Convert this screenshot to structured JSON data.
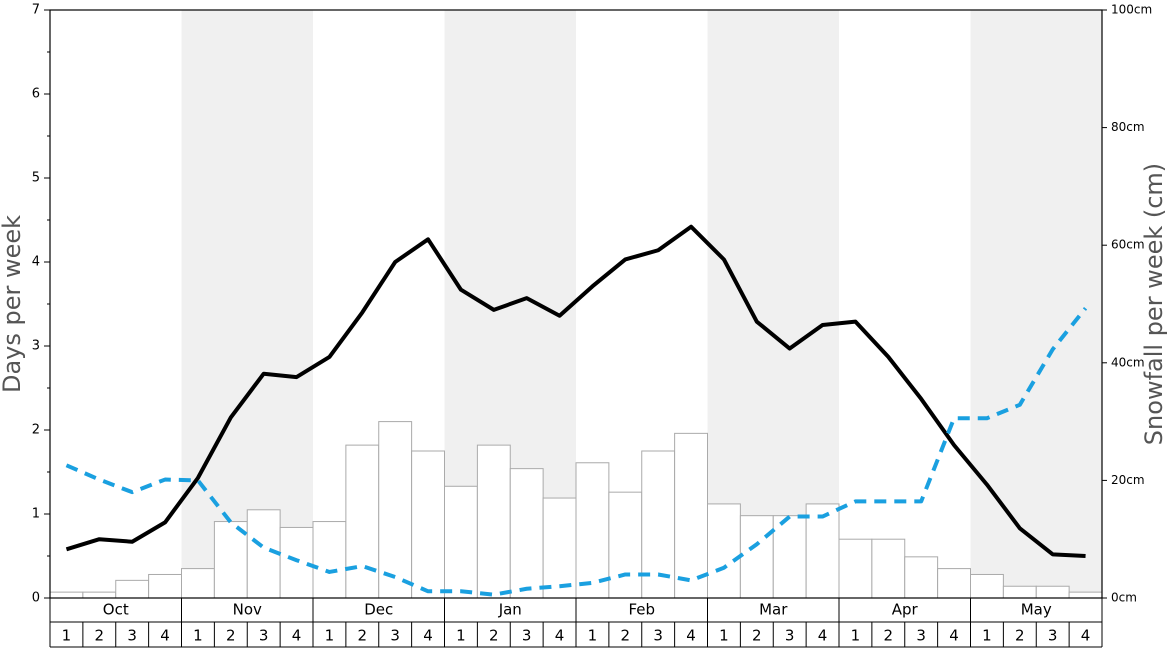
{
  "chart_data": {
    "type": "bar",
    "months": [
      "Oct",
      "Nov",
      "Dec",
      "Jan",
      "Feb",
      "Mar",
      "Apr",
      "May"
    ],
    "categories": [
      "1",
      "2",
      "3",
      "4",
      "1",
      "2",
      "3",
      "4",
      "1",
      "2",
      "3",
      "4",
      "1",
      "2",
      "3",
      "4",
      "1",
      "2",
      "3",
      "4",
      "1",
      "2",
      "3",
      "4",
      "1",
      "2",
      "3",
      "4",
      "1",
      "2",
      "3",
      "4"
    ],
    "ylabel": "Days per week",
    "y2label": "Snowfall per week (cm)",
    "ylim": [
      0,
      7
    ],
    "yticks": [
      0,
      1,
      2,
      3,
      4,
      5,
      6,
      7
    ],
    "y2lim": [
      0,
      100
    ],
    "y2ticks": [
      {
        "value": 0,
        "label": "0cm"
      },
      {
        "value": 20,
        "label": "20cm"
      },
      {
        "value": 40,
        "label": "40cm"
      },
      {
        "value": 60,
        "label": "60cm"
      },
      {
        "value": 80,
        "label": "80cm"
      },
      {
        "value": 100,
        "label": "100cm"
      }
    ],
    "shade_color": "#f0f0f0",
    "series": [
      {
        "type": "bar",
        "axis": "y2",
        "color": "#ffffff",
        "values": [
          1,
          1,
          3,
          4,
          5,
          13,
          15,
          12,
          13,
          26,
          30,
          25,
          19,
          26,
          22,
          17,
          23,
          18,
          25,
          28,
          16,
          14,
          14,
          16,
          10,
          10,
          7,
          5,
          4,
          2,
          2,
          1
        ]
      },
      {
        "type": "line",
        "color": "#000000",
        "dashed": false,
        "values": [
          0.58,
          0.7,
          0.67,
          0.9,
          1.43,
          2.15,
          2.67,
          2.63,
          2.87,
          3.4,
          4.0,
          4.27,
          3.67,
          3.43,
          3.57,
          3.36,
          3.71,
          4.03,
          4.14,
          4.42,
          4.03,
          3.29,
          2.97,
          3.25,
          3.29,
          2.87,
          2.37,
          1.82,
          1.35,
          0.83,
          0.52,
          0.5
        ]
      },
      {
        "type": "line",
        "color": "#1aa0e0",
        "dashed": true,
        "values": [
          1.58,
          1.41,
          1.26,
          1.41,
          1.4,
          0.9,
          0.6,
          0.45,
          0.31,
          0.38,
          0.25,
          0.08,
          0.08,
          0.04,
          0.11,
          0.14,
          0.18,
          0.28,
          0.28,
          0.21,
          0.36,
          0.64,
          0.97,
          0.97,
          1.15,
          1.15,
          1.15,
          2.14,
          2.14,
          2.3,
          2.96,
          3.45
        ]
      }
    ]
  }
}
